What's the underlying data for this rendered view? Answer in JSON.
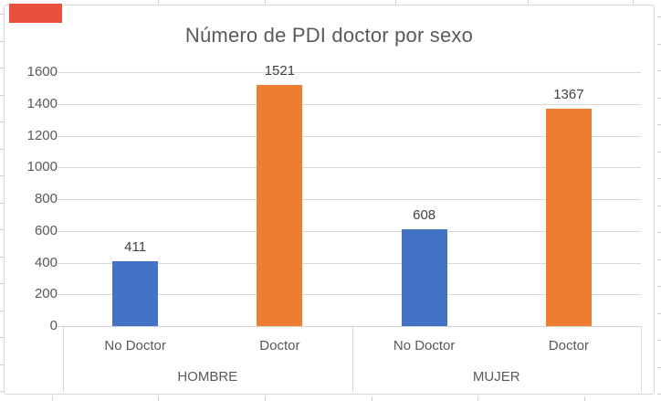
{
  "chart_data": {
    "type": "bar",
    "title": "Número de PDI doctor por sexo",
    "categories": [
      "No Doctor",
      "Doctor",
      "No Doctor",
      "Doctor"
    ],
    "values": [
      411,
      1521,
      608,
      1367
    ],
    "bar_colors": [
      "#4472C4",
      "#ED7D31",
      "#4472C4",
      "#ED7D31"
    ],
    "groups": [
      {
        "label": "HOMBRE",
        "categories": [
          "No Doctor",
          "Doctor"
        ],
        "values": [
          411,
          1521
        ]
      },
      {
        "label": "MUJER",
        "categories": [
          "No Doctor",
          "Doctor"
        ],
        "values": [
          608,
          1367
        ]
      }
    ],
    "group_labels": [
      "HOMBRE",
      "MUJER"
    ],
    "y_ticks": [
      0,
      200,
      400,
      600,
      800,
      1000,
      1200,
      1400,
      1600
    ],
    "ylim": [
      0,
      1600
    ],
    "xlabel": "",
    "ylabel": "",
    "grid": true,
    "legend": "none"
  },
  "colors": {
    "bar_blue": "#4472C4",
    "bar_orange": "#ED7D31",
    "title_text": "#595959",
    "axis_text": "#595959",
    "data_label_text": "#404040",
    "gridline": "#D9D9D9",
    "chart_border": "#D9D9D9",
    "worksheet_gridline": "#CFCFCF",
    "marker_red": "#E8503C"
  }
}
